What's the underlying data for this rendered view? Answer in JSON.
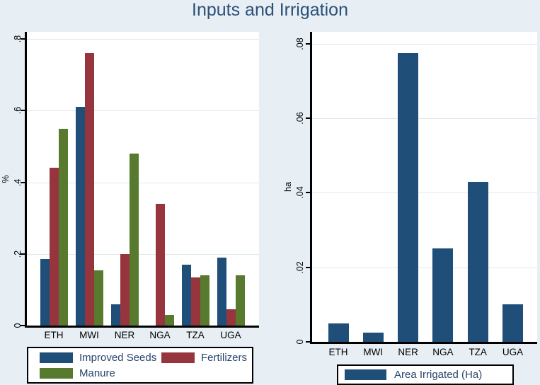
{
  "title": "Inputs and Irrigation",
  "colors": {
    "background": "#e7eff4",
    "plot_background": "#ffffff",
    "gridline": "#dce9f1",
    "axis": "#000000",
    "title_text": "#2c5079",
    "legend_text": "#26456b",
    "tick_text": "#000000"
  },
  "chart_data": [
    {
      "type": "bar",
      "title": "",
      "categories": [
        "ETH",
        "MWI",
        "NER",
        "NGA",
        "TZA",
        "UGA"
      ],
      "series": [
        {
          "name": "Improved Seeds",
          "color": "#1f4e79",
          "values": [
            0.185,
            0.61,
            0.06,
            0,
            0.17,
            0.19
          ]
        },
        {
          "name": "Fertilizers",
          "color": "#97353f",
          "values": [
            0.44,
            0.76,
            0.2,
            0.34,
            0.135,
            0.045
          ]
        },
        {
          "name": "Manure",
          "color": "#577a2f",
          "values": [
            0.55,
            0.155,
            0.48,
            0.03,
            0.14,
            0.14
          ]
        }
      ],
      "xlabel": "",
      "ylabel": "%",
      "yticks": [
        0,
        0.2,
        0.4,
        0.6,
        0.8
      ],
      "ytick_labels": [
        "0",
        ".2",
        ".4",
        ".6",
        ".8"
      ],
      "ylim": [
        0,
        0.82
      ],
      "grid": true,
      "legend_position": "bottom"
    },
    {
      "type": "bar",
      "title": "",
      "categories": [
        "ETH",
        "MWI",
        "NER",
        "NGA",
        "TZA",
        "UGA"
      ],
      "series": [
        {
          "name": "Area Irrigated (Ha)",
          "color": "#1f4e79",
          "values": [
            0.005,
            0.0025,
            0.0775,
            0.025,
            0.043,
            0.01
          ]
        }
      ],
      "xlabel": "",
      "ylabel": "ha",
      "yticks": [
        0,
        0.02,
        0.04,
        0.06,
        0.08
      ],
      "ytick_labels": [
        "0",
        ".02",
        ".04",
        ".06",
        ".08"
      ],
      "ylim": [
        0,
        0.0832
      ],
      "grid": true,
      "legend_position": "bottom"
    }
  ]
}
